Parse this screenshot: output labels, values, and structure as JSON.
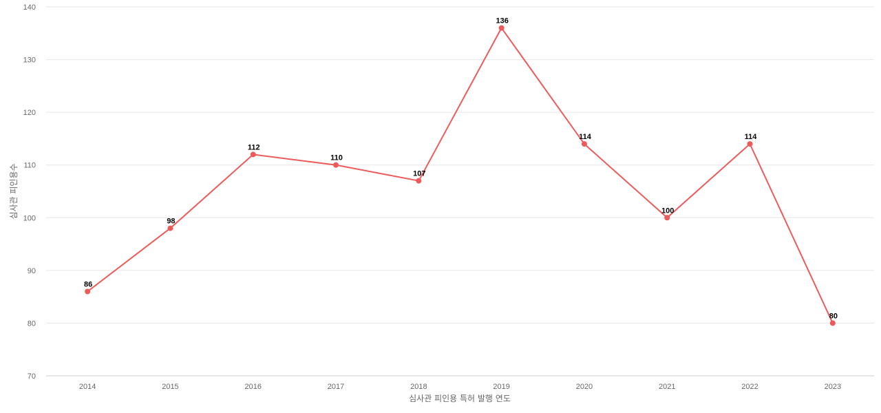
{
  "chart_data": {
    "type": "line",
    "xlabel": "심사관 피인용 특허 발행 연도",
    "ylabel": "심사관 피인용수",
    "ylim": [
      70,
      140
    ],
    "yticks": [
      70,
      80,
      90,
      100,
      110,
      120,
      130,
      140
    ],
    "grid": true,
    "categories": [
      "2014",
      "2015",
      "2016",
      "2017",
      "2018",
      "2019",
      "2020",
      "2021",
      "2022",
      "2023"
    ],
    "series": [
      {
        "values": [
          86,
          98,
          112,
          110,
          107,
          136,
          114,
          100,
          114,
          80
        ],
        "color": "#ee5a5a"
      }
    ]
  }
}
